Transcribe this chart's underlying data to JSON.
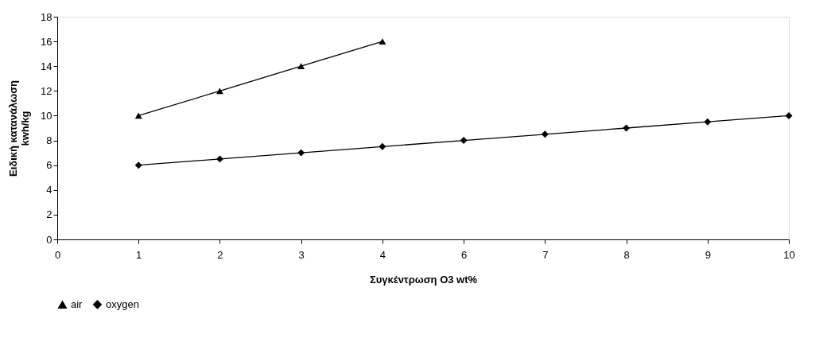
{
  "chart_data": {
    "type": "line",
    "xlabel": "Συγκέντρωση O3 wt%",
    "ylabel": "Ειδική κατανάλωση\nkwh/kg",
    "categories": [
      "0",
      "1",
      "2",
      "3",
      "4",
      "6",
      "7",
      "8",
      "9",
      "10"
    ],
    "series": [
      {
        "name": "air",
        "color": "#000000",
        "marker": "triangle",
        "values": [
          null,
          10,
          12,
          14,
          16,
          null,
          null,
          null,
          null,
          null
        ]
      },
      {
        "name": "oxygen",
        "color": "#000000",
        "marker": "diamond",
        "values": [
          null,
          6,
          6.5,
          7,
          7.5,
          8,
          8.5,
          9,
          9.5,
          10
        ]
      }
    ],
    "ylim": [
      0,
      18
    ],
    "yticks": [
      0,
      2,
      4,
      6,
      8,
      10,
      12,
      14,
      16,
      18
    ],
    "grid": false,
    "legend": "bottom",
    "line_style": "solid"
  }
}
